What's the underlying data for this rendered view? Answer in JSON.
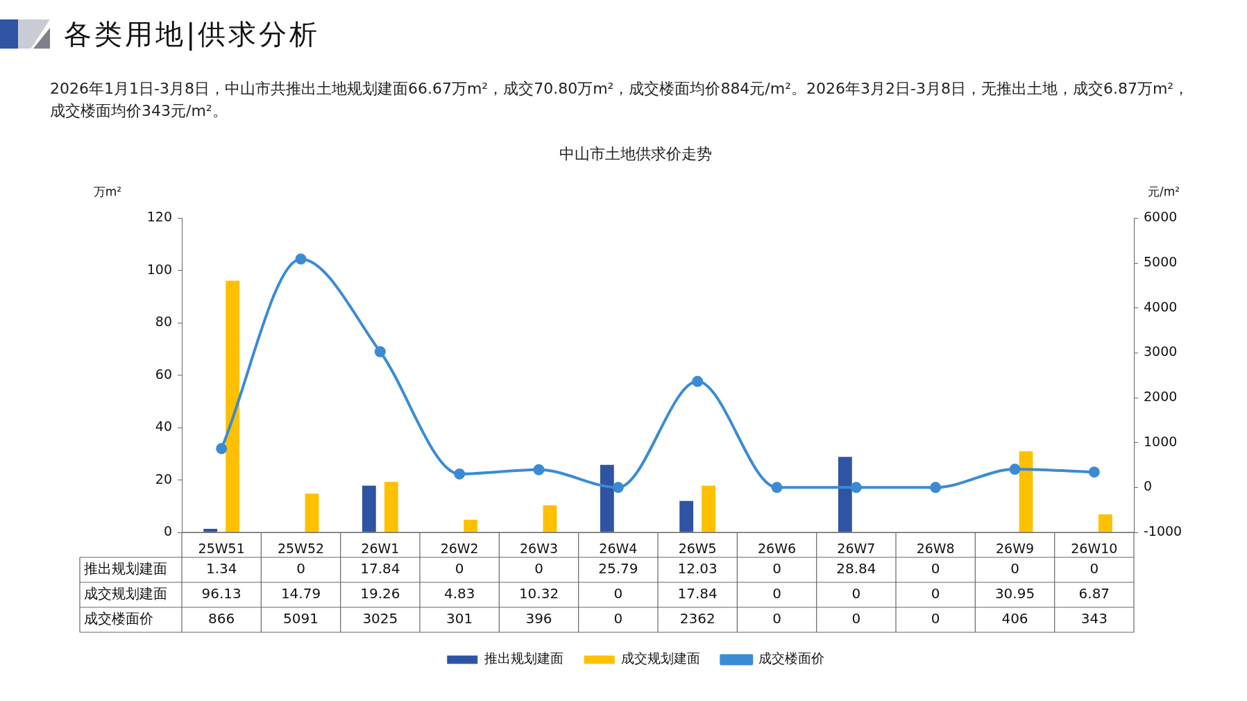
{
  "chart_data": {
    "type": "bar",
    "title": "中山市土地供求价走势",
    "annotations": [
      "各类用地|供求分析",
      "2026年1月1日-3月8日，中山市共推出土地规划建面66.67万m²，成交70.80万m²，成交楼面均价884元/m²。2026年3月2日-3月8日，无推出土地，成交6.87万m²，成交楼面均价343元/m²。"
    ],
    "ylabel": "万m²",
    "y2label": "元/m²",
    "categories": [
      "25W51",
      "25W52",
      "26W1",
      "26W2",
      "26W3",
      "26W4",
      "26W5",
      "26W6",
      "26W7",
      "26W8",
      "26W9",
      "26W10"
    ],
    "series": [
      {
        "name": "推出规划建面",
        "color": "#2e54a3",
        "values": [
          1.34,
          0,
          17.84,
          0,
          0,
          25.79,
          12.03,
          0,
          28.84,
          0,
          0,
          0
        ]
      },
      {
        "name": "成交规划建面",
        "color": "#ffc000",
        "values": [
          96.13,
          14.79,
          19.26,
          4.83,
          10.32,
          0,
          17.84,
          0,
          0,
          0,
          30.95,
          6.87
        ]
      },
      {
        "name": "成交楼面价",
        "type": "line",
        "axis": "y2",
        "color": "#3b8bd4",
        "marker": "circle",
        "values": [
          866,
          5091,
          3025,
          301,
          396,
          0,
          2362,
          0,
          0,
          0,
          406,
          343
        ]
      }
    ],
    "ylim": [
      0,
      120
    ],
    "yticks": [
      0,
      20,
      40,
      60,
      80,
      100,
      120
    ],
    "y2lim": [
      -1000,
      6000
    ],
    "y2ticks": [
      -1000,
      0,
      1000,
      2000,
      3000,
      4000,
      5000,
      6000
    ],
    "data_labels": true,
    "legend": "bottom"
  }
}
